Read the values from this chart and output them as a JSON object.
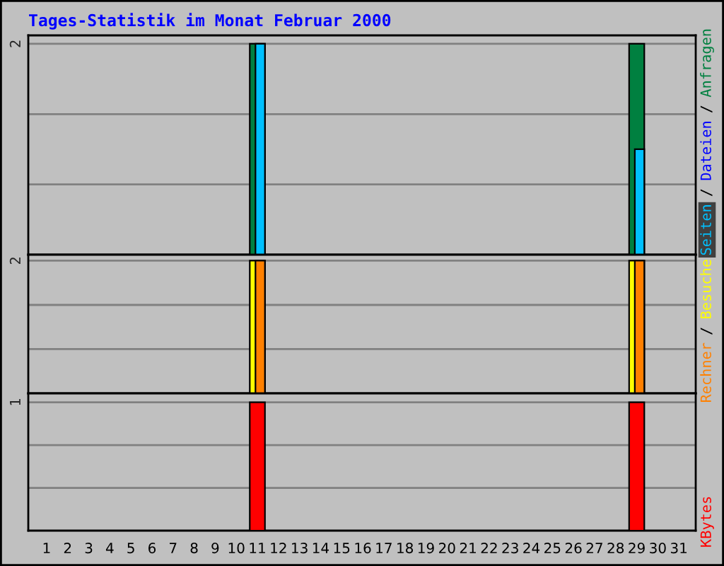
{
  "chart_data": [
    {
      "type": "bar",
      "title": "Tages-Statistik im Monat Februar 2000",
      "categories": [
        "1",
        "2",
        "3",
        "4",
        "5",
        "6",
        "7",
        "8",
        "9",
        "10",
        "11",
        "12",
        "13",
        "14",
        "15",
        "16",
        "17",
        "18",
        "19",
        "20",
        "21",
        "22",
        "23",
        "24",
        "25",
        "26",
        "27",
        "28",
        "29",
        "30",
        "31"
      ],
      "series": [
        {
          "name": "Anfragen",
          "color": "#008040",
          "values": [
            0,
            0,
            0,
            0,
            0,
            0,
            0,
            0,
            0,
            0,
            2,
            0,
            0,
            0,
            0,
            0,
            0,
            0,
            0,
            0,
            0,
            0,
            0,
            0,
            0,
            0,
            0,
            0,
            2,
            0,
            0
          ]
        },
        {
          "name": "Dateien",
          "color": "#0000ff",
          "values": [
            0,
            0,
            0,
            0,
            0,
            0,
            0,
            0,
            0,
            0,
            null,
            0,
            0,
            0,
            0,
            0,
            0,
            0,
            0,
            0,
            0,
            0,
            0,
            0,
            0,
            0,
            0,
            0,
            null,
            0,
            0
          ]
        },
        {
          "name": "Seiten",
          "color": "#00c0ff",
          "values": [
            0,
            0,
            0,
            0,
            0,
            0,
            0,
            0,
            0,
            0,
            2,
            0,
            0,
            0,
            0,
            0,
            0,
            0,
            0,
            0,
            0,
            0,
            0,
            0,
            0,
            0,
            0,
            0,
            1,
            0,
            0
          ]
        }
      ],
      "ylim": [
        0,
        2.08
      ],
      "yticks": [
        {
          "value": 0.667,
          "label": null
        },
        {
          "value": 1.333,
          "label": null
        },
        2
      ],
      "grid": "y",
      "legend": "right",
      "tick_labels": "y",
      "annotations": [
        "/",
        "/"
      ]
    },
    {
      "type": "bar",
      "categories": [
        "1",
        "2",
        "3",
        "4",
        "5",
        "6",
        "7",
        "8",
        "9",
        "10",
        "11",
        "12",
        "13",
        "14",
        "15",
        "16",
        "17",
        "18",
        "19",
        "20",
        "21",
        "22",
        "23",
        "24",
        "25",
        "26",
        "27",
        "28",
        "29",
        "30",
        "31"
      ],
      "series": [
        {
          "name": "Besuche",
          "color": "#ffff00",
          "values": [
            0,
            0,
            0,
            0,
            0,
            0,
            0,
            0,
            0,
            0,
            2,
            0,
            0,
            0,
            0,
            0,
            0,
            0,
            0,
            0,
            0,
            0,
            0,
            0,
            0,
            0,
            0,
            0,
            2,
            0,
            0
          ]
        },
        {
          "name": "Rechner",
          "color": "#ff8000",
          "values": [
            0,
            0,
            0,
            0,
            0,
            0,
            0,
            0,
            0,
            0,
            2,
            0,
            0,
            0,
            0,
            0,
            0,
            0,
            0,
            0,
            0,
            0,
            0,
            0,
            0,
            0,
            0,
            0,
            2,
            0,
            0
          ]
        }
      ],
      "ylim": [
        0,
        2.09
      ],
      "yticks": [
        {
          "value": 0.667,
          "label": null
        },
        {
          "value": 1.333,
          "label": null
        },
        2
      ],
      "grid": "y",
      "legend": "right",
      "tick_labels": "y",
      "annotations": [
        "/"
      ]
    },
    {
      "type": "bar",
      "categories": [
        "1",
        "2",
        "3",
        "4",
        "5",
        "6",
        "7",
        "8",
        "9",
        "10",
        "11",
        "12",
        "13",
        "14",
        "15",
        "16",
        "17",
        "18",
        "19",
        "20",
        "21",
        "22",
        "23",
        "24",
        "25",
        "26",
        "27",
        "28",
        "29",
        "30",
        "31"
      ],
      "series": [
        {
          "name": "KBytes",
          "color": "#ff0000",
          "values": [
            0,
            0,
            0,
            0,
            0,
            0,
            0,
            0,
            0,
            0,
            1,
            0,
            0,
            0,
            0,
            0,
            0,
            0,
            0,
            0,
            0,
            0,
            0,
            0,
            0,
            0,
            0,
            0,
            1,
            0,
            0
          ]
        }
      ],
      "ylim": [
        0,
        1.07
      ],
      "yticks": [
        {
          "value": 0.333,
          "label": null
        },
        {
          "value": 0.667,
          "label": null
        },
        1
      ],
      "grid": "y",
      "legend": "right"
    }
  ]
}
